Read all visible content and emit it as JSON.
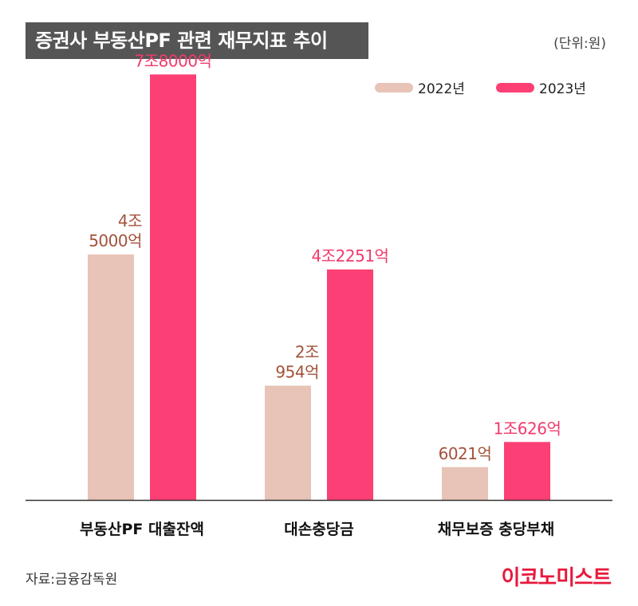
{
  "header": {
    "title": "증권사 부동산PF 관련 재무지표 추이",
    "unit": "(단위:원)"
  },
  "footer": {
    "source": "자료:금융감독원",
    "brand": "이코노미스트"
  },
  "colors": {
    "series_2022": "#e8c3b8",
    "series_2023": "#fc3f74",
    "label_2022": "#a3523a",
    "label_2023": "#f23a6c"
  },
  "chart_data": {
    "type": "bar",
    "categories": [
      "부동산PF 대출잔액",
      "대손충당금",
      "채무보증 충당부채"
    ],
    "series": [
      {
        "name": "2022년",
        "values": [
          45000,
          20954,
          6021
        ],
        "labels": [
          [
            "4조",
            "5000억"
          ],
          [
            "2조",
            "954억"
          ],
          [
            "6021억"
          ]
        ]
      },
      {
        "name": "2023년",
        "values": [
          78000,
          42251,
          10626
        ],
        "labels": [
          [
            "7조8000억"
          ],
          [
            "4조2251억"
          ],
          [
            "1조626억"
          ]
        ]
      }
    ],
    "title": "증권사 부동산PF 관련 재무지표 추이",
    "xlabel": "",
    "ylabel": "",
    "ylim": [
      0,
      82000
    ],
    "value_unit": "억원",
    "grid": false,
    "legend_position": "top-right"
  }
}
